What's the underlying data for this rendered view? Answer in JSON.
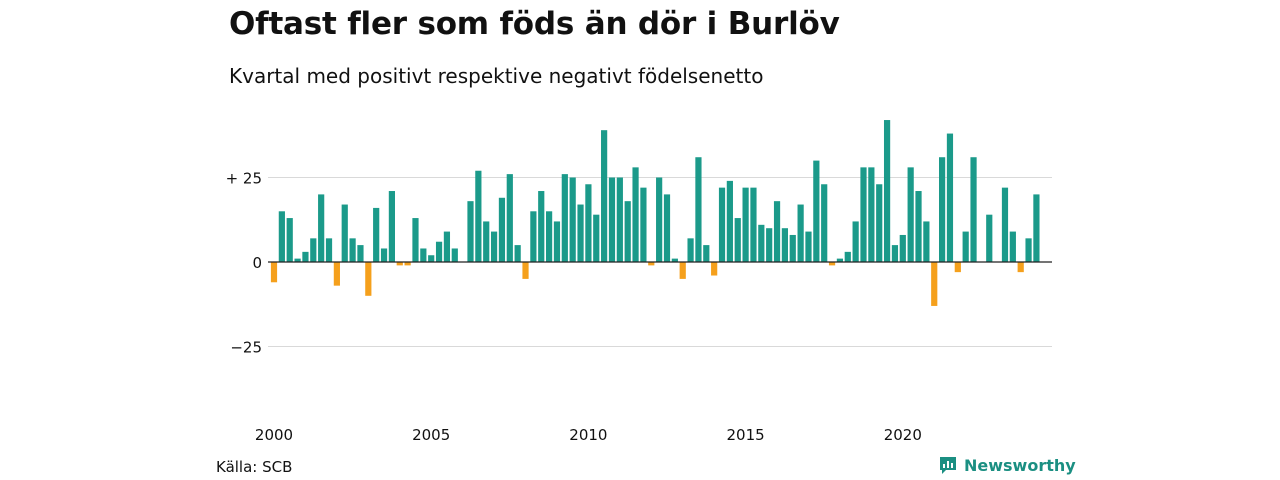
{
  "title": "Oftast fler som föds än dör i Burlöv",
  "subtitle": "Kvartal med positivt respektive negativt födelsenetto",
  "source": "Källa: SCB",
  "brand": {
    "name": "Newsworthy",
    "icon": "newsworthy-logo-icon",
    "color": "#1b8f82"
  },
  "colors": {
    "positive": "#1b9a8a",
    "negative": "#f5a01c",
    "grid": "#d9d9d9",
    "zero": "#222222"
  },
  "chart_data": {
    "type": "bar",
    "title": "Oftast fler som föds än dör i Burlöv",
    "subtitle": "Kvartal med positivt respektive negativt födelsenetto",
    "xlabel": "",
    "ylabel": "",
    "ylim": [
      -40,
      45
    ],
    "grid": true,
    "yticks": [
      {
        "value": 25,
        "label": "+ 25"
      },
      {
        "value": 0,
        "label": "0"
      },
      {
        "value": -25,
        "label": "−25"
      }
    ],
    "xticks": [
      {
        "value": 2000,
        "label": "2000"
      },
      {
        "value": 2005,
        "label": "2005"
      },
      {
        "value": 2010,
        "label": "2010"
      },
      {
        "value": 2015,
        "label": "2015"
      },
      {
        "value": 2020,
        "label": "2020"
      }
    ],
    "start_year": 2000,
    "periods_per_year": 4,
    "values": [
      -6,
      15,
      13,
      1,
      3,
      7,
      20,
      7,
      -7,
      17,
      7,
      5,
      -10,
      16,
      4,
      21,
      -1,
      -1,
      13,
      4,
      2,
      6,
      9,
      4,
      0,
      18,
      27,
      12,
      9,
      19,
      26,
      5,
      -5,
      15,
      21,
      15,
      12,
      26,
      25,
      17,
      23,
      14,
      39,
      25,
      25,
      18,
      28,
      22,
      -1,
      25,
      20,
      1,
      -5,
      7,
      31,
      5,
      -4,
      22,
      24,
      13,
      22,
      22,
      11,
      10,
      18,
      10,
      8,
      17,
      9,
      30,
      23,
      -1,
      1,
      3,
      12,
      28,
      28,
      23,
      42,
      5,
      8,
      28,
      21,
      12,
      -13,
      31,
      38,
      -3,
      9,
      31,
      0,
      14,
      0,
      22,
      9,
      -3,
      7,
      20
    ]
  }
}
